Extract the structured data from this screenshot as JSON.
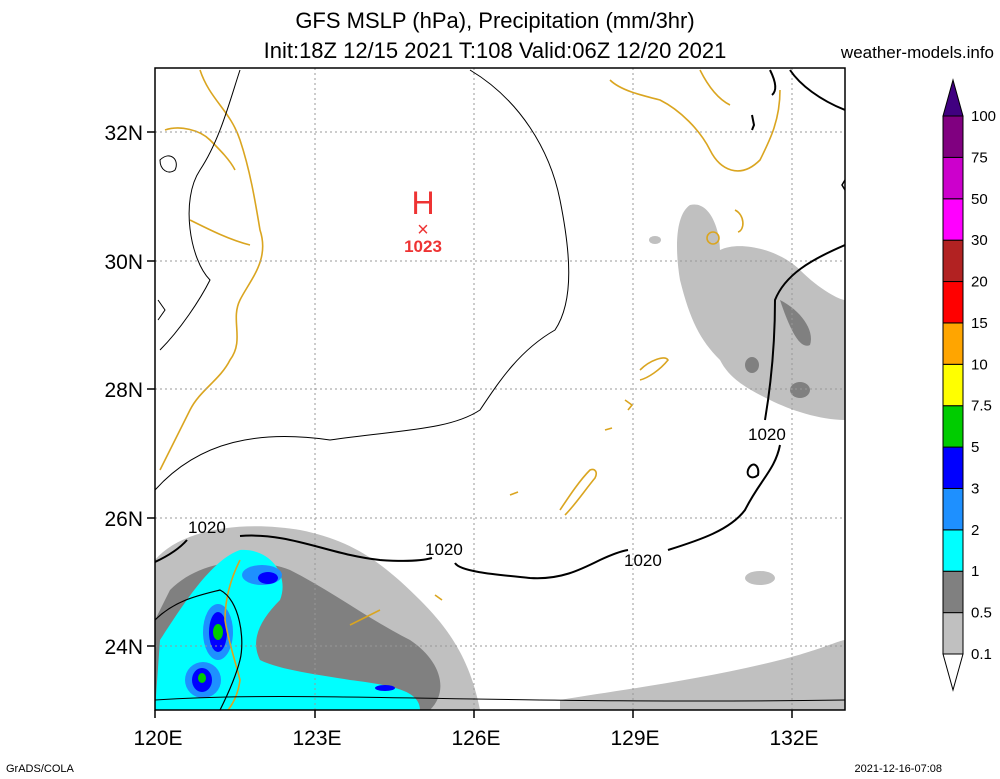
{
  "header": {
    "title_line1": "GFS MSLP (hPa), Precipitation (mm/3hr)",
    "title_line2": "Init:18Z 12/15 2021 T:108 Valid:06Z 12/20 2021",
    "site": "weather-models.info"
  },
  "footer": {
    "left": "GrADS/COLA",
    "right": "2021-12-16-07:08"
  },
  "axes": {
    "lat_labels": [
      "32N",
      "30N",
      "28N",
      "26N",
      "24N"
    ],
    "lon_labels": [
      "120E",
      "123E",
      "126E",
      "129E",
      "132E"
    ]
  },
  "high_center": {
    "symbol": "H",
    "marker": "×",
    "value": "1023",
    "color": "#ee3333"
  },
  "isobar_labels": [
    "1020",
    "1020",
    "1020",
    "1020"
  ],
  "colorbar": {
    "levels": [
      "0.1",
      "0.5",
      "1",
      "2",
      "3",
      "5",
      "7.5",
      "10",
      "15",
      "20",
      "30",
      "50",
      "75",
      "100"
    ],
    "colors": [
      "#ffffff",
      "#c0c0c0",
      "#808080",
      "#00ffff",
      "#1e90ff",
      "#0000ff",
      "#00cc00",
      "#ffff00",
      "#ffa500",
      "#ff0000",
      "#b22222",
      "#ff00ff",
      "#cc00cc",
      "#800080",
      "#400080"
    ]
  },
  "coast_color": "#daa520"
}
